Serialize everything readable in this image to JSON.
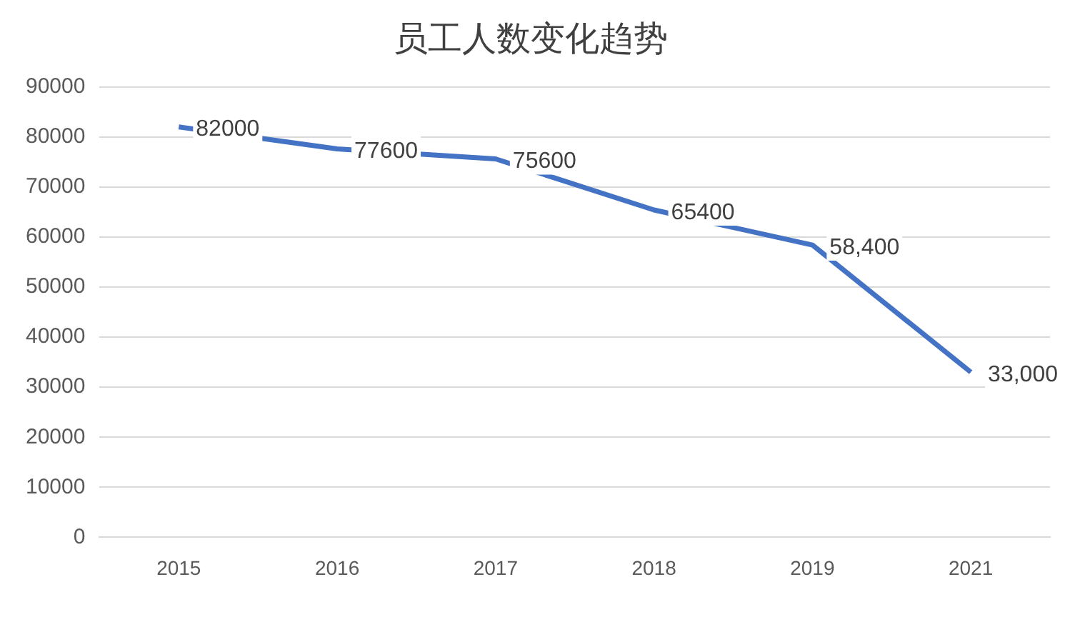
{
  "chart_data": {
    "type": "line",
    "title": "员工人数变化趋势",
    "categories": [
      "2015",
      "2016",
      "2017",
      "2018",
      "2019",
      "2021"
    ],
    "series": [
      {
        "color": "#4472c4",
        "values": [
          82000,
          77600,
          75600,
          65400,
          58400,
          33000
        ],
        "value_labels": [
          "82000",
          "77600",
          "75600",
          "65400",
          "58,400",
          "33,000"
        ]
      }
    ],
    "ylim": [
      0,
      90000
    ],
    "yticks": [
      0,
      10000,
      20000,
      30000,
      40000,
      50000,
      60000,
      70000,
      80000,
      90000
    ],
    "grid": "y",
    "legend": false,
    "marker": "none",
    "line_style": "solid"
  }
}
